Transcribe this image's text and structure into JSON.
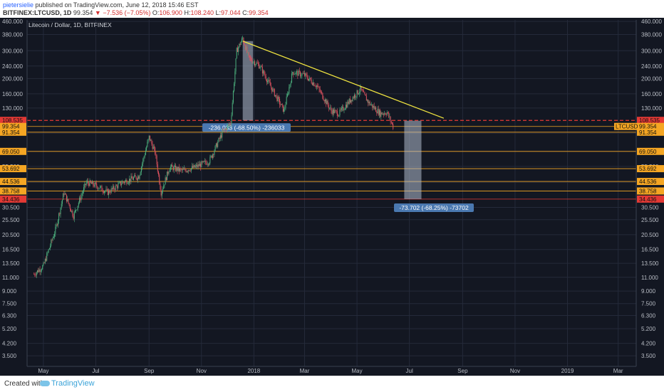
{
  "header": {
    "author": "pietersielie",
    "published": "published on TradingView.com, June 12, 2018 15:46 EST",
    "symbol": "BITFINEX:LTCUSD, 1D",
    "last": "99.354",
    "change": "▼ −7.536 (−7.05%)",
    "o_label": "O:",
    "o": "106.900",
    "h_label": "H:",
    "h": "108.240",
    "l_label": "L:",
    "l": "97.044",
    "c_label": "C:",
    "c": "99.354"
  },
  "chart_title": "Litecoin / Dollar, 1D, BITFINEX",
  "footer": {
    "created_with": "Created with",
    "brand": "TradingView"
  },
  "colors": {
    "background": "#131722",
    "grid": "#242a3a",
    "bull": "#4caf7d",
    "bear": "#e0525f",
    "trendline": "#f0e440",
    "level": "#f5a623",
    "red_level": "#e53935",
    "box": "#b0bccd",
    "note_bg": "#4a78b0"
  },
  "chart_data": {
    "type": "candlestick",
    "y_scale": "log",
    "ylim": [
      3.0,
      470
    ],
    "x_ticks": [
      "May",
      "Jul",
      "Sep",
      "Nov",
      "2018",
      "Mar",
      "May",
      "Jul",
      "Sep",
      "Nov",
      "2019",
      "Mar"
    ],
    "y_ticks": [
      "460.000",
      "380.000",
      "300.000",
      "240.000",
      "200.000",
      "160.000",
      "130.000",
      "90.000",
      "69.050",
      "55.500",
      "44.000",
      "30.500",
      "25.500",
      "20.500",
      "16.500",
      "13.500",
      "11.000",
      "9.000",
      "7.500",
      "6.300",
      "5.200",
      "4.200",
      "3.500"
    ],
    "price_path": [
      [
        "2017-04-20",
        11.5
      ],
      [
        "2017-05-01",
        13
      ],
      [
        "2017-05-15",
        22
      ],
      [
        "2017-05-25",
        38
      ],
      [
        "2017-06-05",
        27
      ],
      [
        "2017-06-20",
        44
      ],
      [
        "2017-07-01",
        42
      ],
      [
        "2017-07-15",
        38
      ],
      [
        "2017-08-01",
        44
      ],
      [
        "2017-08-20",
        48
      ],
      [
        "2017-09-01",
        85
      ],
      [
        "2017-09-08",
        68
      ],
      [
        "2017-09-15",
        38
      ],
      [
        "2017-09-25",
        55
      ],
      [
        "2017-10-10",
        52
      ],
      [
        "2017-10-25",
        55
      ],
      [
        "2017-11-10",
        60
      ],
      [
        "2017-11-25",
        90
      ],
      [
        "2017-12-05",
        105
      ],
      [
        "2017-12-12",
        300
      ],
      [
        "2017-12-19",
        360
      ],
      [
        "2017-12-26",
        270
      ],
      [
        "2018-01-08",
        240
      ],
      [
        "2018-01-20",
        180
      ],
      [
        "2018-02-05",
        125
      ],
      [
        "2018-02-15",
        220
      ],
      [
        "2018-03-01",
        210
      ],
      [
        "2018-03-15",
        180
      ],
      [
        "2018-04-01",
        125
      ],
      [
        "2018-04-10",
        120
      ],
      [
        "2018-04-25",
        150
      ],
      [
        "2018-05-05",
        170
      ],
      [
        "2018-05-15",
        140
      ],
      [
        "2018-05-28",
        120
      ],
      [
        "2018-06-05",
        122
      ],
      [
        "2018-06-12",
        99
      ]
    ],
    "levels": [
      {
        "label": "108.535",
        "value": 108.535,
        "style": "red-dashed"
      },
      {
        "label": "99.354",
        "value": 99.354,
        "style": "orange"
      },
      {
        "label": "91.354",
        "value": 91.354,
        "style": "orange"
      },
      {
        "label": "69.050",
        "value": 69.05,
        "style": "orange"
      },
      {
        "label": "53.692",
        "value": 53.692,
        "style": "orange"
      },
      {
        "label": "44.536",
        "value": 44.536,
        "style": "orange"
      },
      {
        "label": "38.758",
        "value": 38.758,
        "style": "orange"
      },
      {
        "label": "34.436",
        "value": 34.436,
        "style": "red"
      }
    ],
    "price_tag": "LTCUSD",
    "trendline": {
      "from": [
        "2017-12-19",
        345
      ],
      "to": [
        "2018-08-10",
        112
      ]
    },
    "measures": [
      {
        "from": [
          "2017-12-19",
          345
        ],
        "to": [
          "2017-12-31",
          108.5
        ],
        "label": "-236.033 (-68.50%) -236033"
      },
      {
        "from": [
          "2018-06-25",
          108.0
        ],
        "to": [
          "2018-07-15",
          34.4
        ],
        "label": "-73.702 (-68.25%) -73702"
      }
    ]
  }
}
